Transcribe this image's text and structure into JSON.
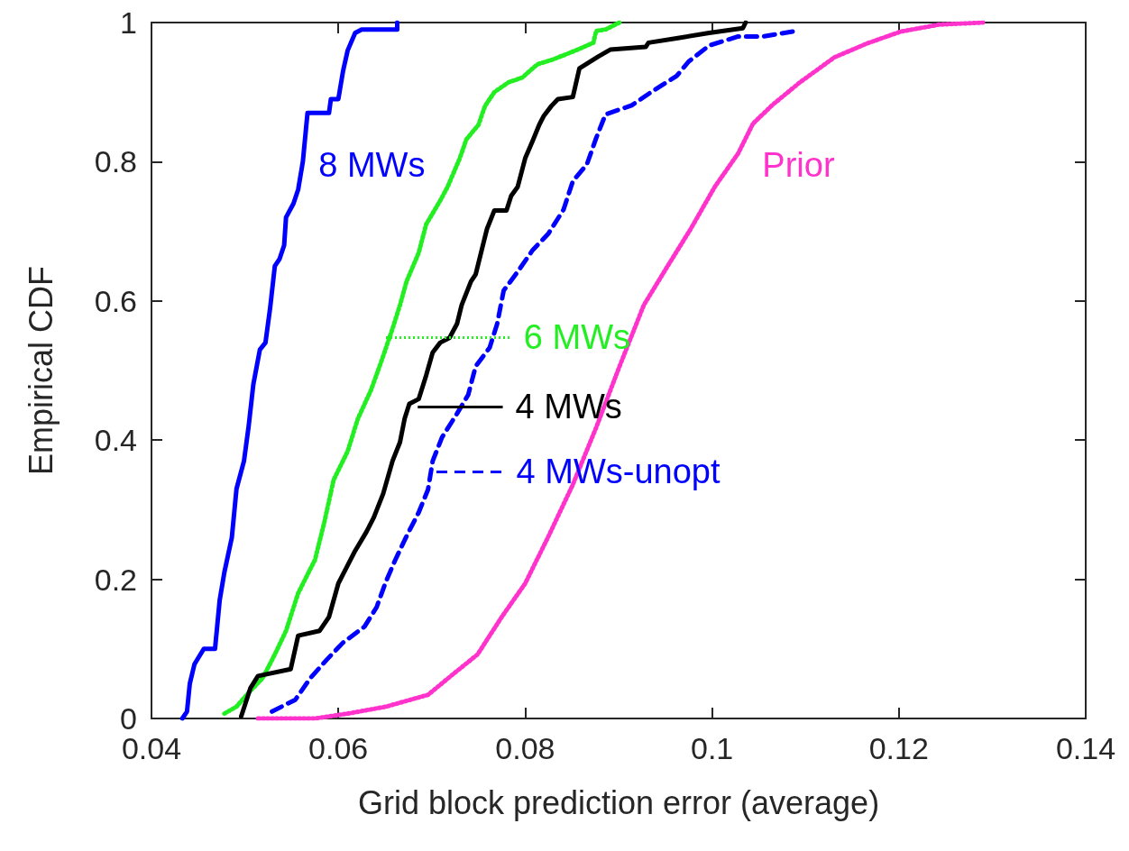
{
  "chart_data": {
    "type": "line",
    "xlabel": "Grid block prediction error (average)",
    "ylabel": "Empirical CDF",
    "xlim": [
      0.04,
      0.14
    ],
    "xticks": [
      0.04,
      0.06,
      0.08,
      0.1,
      0.12,
      0.14
    ],
    "ylim": [
      0,
      1
    ],
    "yticks": [
      0,
      0.2,
      0.4,
      0.6,
      0.8,
      1
    ],
    "grid": false,
    "legend": "center",
    "marker": "none",
    "series": [
      {
        "name": "8 MWs",
        "color": "#0000ff",
        "line_style": "solid",
        "x": [
          0.0433,
          0.0438,
          0.0441,
          0.0446,
          0.0456,
          0.0468,
          0.0473,
          0.0478,
          0.0486,
          0.0491,
          0.0499,
          0.0504,
          0.0509,
          0.0516,
          0.0522,
          0.0527,
          0.0532,
          0.0537,
          0.0542,
          0.0544,
          0.0552,
          0.0557,
          0.0562,
          0.0567,
          0.059,
          0.0592,
          0.06,
          0.0605,
          0.061,
          0.0618,
          0.0625,
          0.0663,
          0.0663
        ],
        "values": [
          0,
          0.01,
          0.05,
          0.078,
          0.1,
          0.1,
          0.17,
          0.21,
          0.26,
          0.33,
          0.37,
          0.42,
          0.48,
          0.53,
          0.54,
          0.59,
          0.65,
          0.66,
          0.68,
          0.72,
          0.74,
          0.76,
          0.8,
          0.87,
          0.87,
          0.89,
          0.89,
          0.93,
          0.96,
          0.985,
          0.99,
          0.99,
          1
        ]
      },
      {
        "name": "6 MWs",
        "color": "#22ee22",
        "line_style": "dotted",
        "x": [
          0.0478,
          0.0491,
          0.0504,
          0.0519,
          0.0532,
          0.0544,
          0.0557,
          0.0575,
          0.0585,
          0.0595,
          0.061,
          0.0621,
          0.0635,
          0.0646,
          0.0658,
          0.0666,
          0.0673,
          0.0686,
          0.0694,
          0.0709,
          0.0717,
          0.073,
          0.0737,
          0.075,
          0.0757,
          0.0767,
          0.0782,
          0.0797,
          0.0813,
          0.083,
          0.0856,
          0.0873,
          0.0876,
          0.0886,
          0.0901
        ],
        "values": [
          0.007,
          0.017,
          0.037,
          0.058,
          0.092,
          0.126,
          0.18,
          0.228,
          0.282,
          0.343,
          0.384,
          0.431,
          0.472,
          0.513,
          0.56,
          0.594,
          0.628,
          0.669,
          0.71,
          0.744,
          0.764,
          0.805,
          0.832,
          0.853,
          0.88,
          0.9,
          0.914,
          0.921,
          0.94,
          0.947,
          0.961,
          0.971,
          0.988,
          0.99,
          1
        ]
      },
      {
        "name": "4 MWs",
        "color": "#000000",
        "line_style": "solid",
        "x": [
          0.0496,
          0.0506,
          0.0514,
          0.0549,
          0.0557,
          0.058,
          0.059,
          0.06,
          0.0605,
          0.0618,
          0.063,
          0.0638,
          0.0648,
          0.0658,
          0.0666,
          0.0671,
          0.0676,
          0.0686,
          0.0694,
          0.0701,
          0.0709,
          0.0719,
          0.0727,
          0.0732,
          0.0742,
          0.0747,
          0.0754,
          0.0759,
          0.0767,
          0.078,
          0.0785,
          0.0792,
          0.08,
          0.0808,
          0.0815,
          0.082,
          0.0828,
          0.0835,
          0.0851,
          0.0858,
          0.0878,
          0.0891,
          0.0929,
          0.0932,
          0.0965,
          0.0997,
          0.1033,
          0.1036
        ],
        "values": [
          0.003,
          0.044,
          0.061,
          0.071,
          0.119,
          0.126,
          0.146,
          0.194,
          0.207,
          0.241,
          0.268,
          0.289,
          0.323,
          0.37,
          0.397,
          0.431,
          0.452,
          0.459,
          0.493,
          0.526,
          0.54,
          0.547,
          0.567,
          0.594,
          0.628,
          0.638,
          0.676,
          0.703,
          0.73,
          0.73,
          0.751,
          0.764,
          0.805,
          0.83,
          0.853,
          0.866,
          0.88,
          0.89,
          0.893,
          0.934,
          0.951,
          0.961,
          0.965,
          0.971,
          0.978,
          0.985,
          0.992,
          1
        ]
      },
      {
        "name": "4 MWs-unopt",
        "color": "#0000ff",
        "line_style": "dashed",
        "x": [
          0.0529,
          0.0554,
          0.057,
          0.0588,
          0.0605,
          0.0628,
          0.0641,
          0.0651,
          0.0661,
          0.0673,
          0.0686,
          0.0696,
          0.0701,
          0.0711,
          0.0727,
          0.0739,
          0.0747,
          0.0762,
          0.077,
          0.0777,
          0.0792,
          0.0808,
          0.0825,
          0.0841,
          0.0851,
          0.0866,
          0.0876,
          0.0886,
          0.0914,
          0.0937,
          0.0962,
          0.0975,
          0.0997,
          0.1028,
          0.1055,
          0.109
        ],
        "values": [
          0.01,
          0.027,
          0.058,
          0.085,
          0.109,
          0.132,
          0.16,
          0.197,
          0.228,
          0.262,
          0.296,
          0.329,
          0.37,
          0.404,
          0.438,
          0.465,
          0.506,
          0.533,
          0.567,
          0.615,
          0.642,
          0.673,
          0.697,
          0.731,
          0.772,
          0.796,
          0.834,
          0.868,
          0.881,
          0.902,
          0.923,
          0.944,
          0.967,
          0.98,
          0.98,
          0.988
        ]
      },
      {
        "name": "Prior",
        "color": "#ff33cc",
        "line_style": "dotted",
        "x": [
          0.0514,
          0.0575,
          0.061,
          0.0651,
          0.0696,
          0.0724,
          0.0749,
          0.0775,
          0.08,
          0.0825,
          0.0851,
          0.0876,
          0.0901,
          0.0927,
          0.0952,
          0.0977,
          0.1003,
          0.1028,
          0.1044,
          0.1065,
          0.1094,
          0.1131,
          0.1166,
          0.1202,
          0.1243,
          0.129
        ],
        "values": [
          0,
          0,
          0.007,
          0.017,
          0.034,
          0.065,
          0.092,
          0.146,
          0.194,
          0.262,
          0.336,
          0.418,
          0.506,
          0.594,
          0.649,
          0.703,
          0.764,
          0.812,
          0.855,
          0.882,
          0.914,
          0.95,
          0.97,
          0.987,
          0.997,
          1
        ]
      }
    ]
  }
}
